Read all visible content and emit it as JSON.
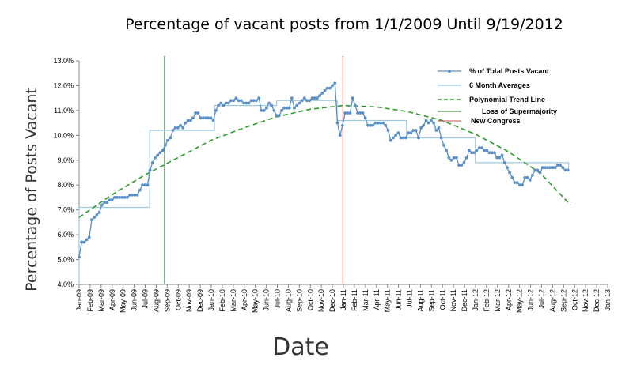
{
  "chart_data": {
    "type": "line",
    "title": "Percentage of vacant posts from 1/1/2009 Until 9/19/2012",
    "xlabel": "Date",
    "ylabel": "Percentage of Posts Vacant",
    "xlim": [
      "2009-01-01",
      "2013-01-01"
    ],
    "ylim": [
      4.0,
      13.0
    ],
    "y_ticks": [
      "4.0%",
      "5.0%",
      "6.0%",
      "7.0%",
      "8.0%",
      "9.0%",
      "10.0%",
      "11.0%",
      "12.0%",
      "13.0%"
    ],
    "x_ticks": [
      "Jan-09",
      "Feb-09",
      "Mar-09",
      "Apr-09",
      "May-09",
      "Jun-09",
      "Jul-09",
      "Aug-09",
      "Sep-09",
      "Oct-09",
      "Nov-09",
      "Dec-09",
      "Jan-10",
      "Feb-10",
      "Mar-10",
      "Apr-10",
      "May-10",
      "Jun-10",
      "Jul-10",
      "Aug-10",
      "Sep-10",
      "Oct-10",
      "Nov-10",
      "Dec-10",
      "Jan-11",
      "Feb-11",
      "Mar-11",
      "Apr-11",
      "May-11",
      "Jun-11",
      "Jul-11",
      "Aug-11",
      "Sep-11",
      "Oct-11",
      "Nov-11",
      "Dec-11",
      "Jan-12",
      "Feb-12",
      "Mar-12",
      "Apr-12",
      "May-12",
      "Jun-12",
      "Jul-12",
      "Aug-12",
      "Sep-12",
      "Oct-12",
      "Nov-12",
      "Dec-12",
      "Jan-13"
    ],
    "grid": false,
    "legend_position": "top-right",
    "series": [
      {
        "name": "% of Total Posts Vacant",
        "color": "#5b8fc7",
        "style": "line-markers",
        "points": [
          [
            "2009-01-01",
            5.1
          ],
          [
            "2009-01-08",
            5.7
          ],
          [
            "2009-01-15",
            5.7
          ],
          [
            "2009-01-22",
            5.8
          ],
          [
            "2009-01-29",
            5.9
          ],
          [
            "2009-02-05",
            6.6
          ],
          [
            "2009-02-12",
            6.7
          ],
          [
            "2009-02-19",
            6.8
          ],
          [
            "2009-02-26",
            6.9
          ],
          [
            "2009-03-05",
            7.2
          ],
          [
            "2009-03-12",
            7.3
          ],
          [
            "2009-03-19",
            7.3
          ],
          [
            "2009-03-26",
            7.4
          ],
          [
            "2009-04-02",
            7.4
          ],
          [
            "2009-04-09",
            7.5
          ],
          [
            "2009-04-16",
            7.5
          ],
          [
            "2009-04-23",
            7.5
          ],
          [
            "2009-04-30",
            7.5
          ],
          [
            "2009-05-07",
            7.5
          ],
          [
            "2009-05-14",
            7.5
          ],
          [
            "2009-05-21",
            7.6
          ],
          [
            "2009-05-28",
            7.6
          ],
          [
            "2009-06-04",
            7.6
          ],
          [
            "2009-06-11",
            7.6
          ],
          [
            "2009-06-18",
            7.8
          ],
          [
            "2009-06-25",
            8.0
          ],
          [
            "2009-07-02",
            8.0
          ],
          [
            "2009-07-09",
            8.0
          ],
          [
            "2009-07-16",
            8.6
          ],
          [
            "2009-07-23",
            8.9
          ],
          [
            "2009-07-30",
            9.1
          ],
          [
            "2009-08-06",
            9.2
          ],
          [
            "2009-08-13",
            9.3
          ],
          [
            "2009-08-20",
            9.4
          ],
          [
            "2009-08-27",
            9.6
          ],
          [
            "2009-09-03",
            9.8
          ],
          [
            "2009-09-10",
            9.9
          ],
          [
            "2009-09-17",
            10.2
          ],
          [
            "2009-09-24",
            10.3
          ],
          [
            "2009-10-01",
            10.3
          ],
          [
            "2009-10-08",
            10.4
          ],
          [
            "2009-10-15",
            10.3
          ],
          [
            "2009-10-22",
            10.5
          ],
          [
            "2009-10-29",
            10.6
          ],
          [
            "2009-11-05",
            10.6
          ],
          [
            "2009-11-12",
            10.7
          ],
          [
            "2009-11-19",
            10.9
          ],
          [
            "2009-11-26",
            10.9
          ],
          [
            "2009-12-03",
            10.7
          ],
          [
            "2009-12-10",
            10.7
          ],
          [
            "2009-12-17",
            10.7
          ],
          [
            "2009-12-24",
            10.7
          ],
          [
            "2009-12-31",
            10.7
          ],
          [
            "2010-01-07",
            10.6
          ],
          [
            "2010-01-14",
            11.0
          ],
          [
            "2010-01-21",
            11.2
          ],
          [
            "2010-01-28",
            11.3
          ],
          [
            "2010-02-04",
            11.2
          ],
          [
            "2010-02-11",
            11.3
          ],
          [
            "2010-02-18",
            11.3
          ],
          [
            "2010-02-25",
            11.4
          ],
          [
            "2010-03-04",
            11.4
          ],
          [
            "2010-03-11",
            11.5
          ],
          [
            "2010-03-18",
            11.4
          ],
          [
            "2010-03-25",
            11.4
          ],
          [
            "2010-04-01",
            11.3
          ],
          [
            "2010-04-08",
            11.3
          ],
          [
            "2010-04-15",
            11.3
          ],
          [
            "2010-04-22",
            11.4
          ],
          [
            "2010-04-29",
            11.4
          ],
          [
            "2010-05-06",
            11.4
          ],
          [
            "2010-05-13",
            11.5
          ],
          [
            "2010-05-20",
            11.0
          ],
          [
            "2010-05-27",
            11.0
          ],
          [
            "2010-06-03",
            11.1
          ],
          [
            "2010-06-10",
            11.3
          ],
          [
            "2010-06-17",
            11.2
          ],
          [
            "2010-06-24",
            11.0
          ],
          [
            "2010-07-01",
            10.8
          ],
          [
            "2010-07-08",
            10.8
          ],
          [
            "2010-07-15",
            11.0
          ],
          [
            "2010-07-22",
            11.1
          ],
          [
            "2010-07-29",
            11.1
          ],
          [
            "2010-08-05",
            11.1
          ],
          [
            "2010-08-12",
            11.5
          ],
          [
            "2010-08-19",
            11.1
          ],
          [
            "2010-08-26",
            11.2
          ],
          [
            "2010-09-02",
            11.3
          ],
          [
            "2010-09-09",
            11.4
          ],
          [
            "2010-09-16",
            11.5
          ],
          [
            "2010-09-23",
            11.4
          ],
          [
            "2010-09-30",
            11.4
          ],
          [
            "2010-10-07",
            11.5
          ],
          [
            "2010-10-14",
            11.5
          ],
          [
            "2010-10-21",
            11.5
          ],
          [
            "2010-10-28",
            11.6
          ],
          [
            "2010-11-04",
            11.7
          ],
          [
            "2010-11-11",
            11.8
          ],
          [
            "2010-11-18",
            11.9
          ],
          [
            "2010-11-25",
            11.9
          ],
          [
            "2010-12-02",
            12.0
          ],
          [
            "2010-12-09",
            12.1
          ],
          [
            "2010-12-16",
            10.5
          ],
          [
            "2010-12-23",
            10.0
          ],
          [
            "2010-12-30",
            10.4
          ],
          [
            "2011-01-06",
            10.9
          ],
          [
            "2011-01-13",
            10.9
          ],
          [
            "2011-01-20",
            10.9
          ],
          [
            "2011-01-27",
            11.5
          ],
          [
            "2011-02-03",
            11.2
          ],
          [
            "2011-02-10",
            10.9
          ],
          [
            "2011-02-17",
            10.9
          ],
          [
            "2011-02-24",
            10.9
          ],
          [
            "2011-03-03",
            10.7
          ],
          [
            "2011-03-10",
            10.4
          ],
          [
            "2011-03-17",
            10.4
          ],
          [
            "2011-03-24",
            10.4
          ],
          [
            "2011-03-31",
            10.5
          ],
          [
            "2011-04-07",
            10.5
          ],
          [
            "2011-04-14",
            10.5
          ],
          [
            "2011-04-21",
            10.5
          ],
          [
            "2011-04-28",
            10.4
          ],
          [
            "2011-05-05",
            10.2
          ],
          [
            "2011-05-12",
            9.8
          ],
          [
            "2011-05-19",
            9.9
          ],
          [
            "2011-05-26",
            10.0
          ],
          [
            "2011-06-02",
            10.1
          ],
          [
            "2011-06-09",
            9.9
          ],
          [
            "2011-06-16",
            9.9
          ],
          [
            "2011-06-23",
            9.9
          ],
          [
            "2011-06-30",
            10.1
          ],
          [
            "2011-07-07",
            10.1
          ],
          [
            "2011-07-14",
            10.2
          ],
          [
            "2011-07-21",
            10.2
          ],
          [
            "2011-07-28",
            9.9
          ],
          [
            "2011-08-04",
            10.3
          ],
          [
            "2011-08-11",
            10.4
          ],
          [
            "2011-08-18",
            10.6
          ],
          [
            "2011-08-25",
            10.5
          ],
          [
            "2011-09-01",
            10.6
          ],
          [
            "2011-09-08",
            10.5
          ],
          [
            "2011-09-15",
            10.2
          ],
          [
            "2011-09-22",
            10.3
          ],
          [
            "2011-09-29",
            9.9
          ],
          [
            "2011-10-06",
            9.6
          ],
          [
            "2011-10-13",
            9.4
          ],
          [
            "2011-10-20",
            9.1
          ],
          [
            "2011-10-27",
            9.0
          ],
          [
            "2011-11-03",
            9.1
          ],
          [
            "2011-11-10",
            9.1
          ],
          [
            "2011-11-17",
            8.8
          ],
          [
            "2011-11-24",
            8.8
          ],
          [
            "2011-12-01",
            8.9
          ],
          [
            "2011-12-08",
            9.1
          ],
          [
            "2011-12-15",
            9.4
          ],
          [
            "2011-12-22",
            9.3
          ],
          [
            "2011-12-29",
            9.3
          ],
          [
            "2012-01-05",
            9.4
          ],
          [
            "2012-01-12",
            9.5
          ],
          [
            "2012-01-19",
            9.5
          ],
          [
            "2012-01-26",
            9.4
          ],
          [
            "2012-02-02",
            9.4
          ],
          [
            "2012-02-09",
            9.3
          ],
          [
            "2012-02-16",
            9.3
          ],
          [
            "2012-02-23",
            9.3
          ],
          [
            "2012-03-01",
            9.1
          ],
          [
            "2012-03-08",
            9.1
          ],
          [
            "2012-03-15",
            9.2
          ],
          [
            "2012-03-22",
            8.9
          ],
          [
            "2012-03-29",
            8.7
          ],
          [
            "2012-04-05",
            8.5
          ],
          [
            "2012-04-12",
            8.3
          ],
          [
            "2012-04-19",
            8.1
          ],
          [
            "2012-04-26",
            8.1
          ],
          [
            "2012-05-03",
            8.0
          ],
          [
            "2012-05-10",
            8.0
          ],
          [
            "2012-05-17",
            8.3
          ],
          [
            "2012-05-24",
            8.3
          ],
          [
            "2012-05-31",
            8.2
          ],
          [
            "2012-06-07",
            8.4
          ],
          [
            "2012-06-14",
            8.6
          ],
          [
            "2012-06-21",
            8.6
          ],
          [
            "2012-06-28",
            8.5
          ],
          [
            "2012-07-05",
            8.7
          ],
          [
            "2012-07-12",
            8.7
          ],
          [
            "2012-07-19",
            8.7
          ],
          [
            "2012-07-26",
            8.7
          ],
          [
            "2012-08-02",
            8.7
          ],
          [
            "2012-08-09",
            8.7
          ],
          [
            "2012-08-16",
            8.8
          ],
          [
            "2012-08-23",
            8.8
          ],
          [
            "2012-08-30",
            8.7
          ],
          [
            "2012-09-06",
            8.6
          ],
          [
            "2012-09-13",
            8.6
          ]
        ]
      },
      {
        "name": "6 Month Averages",
        "color": "#9ec9e2",
        "style": "step",
        "points": [
          [
            "2009-01-01",
            4.0
          ],
          [
            "2009-01-01",
            7.1
          ],
          [
            "2009-07-15",
            7.1
          ],
          [
            "2009-07-15",
            10.2
          ],
          [
            "2010-01-10",
            10.2
          ],
          [
            "2010-01-10",
            11.2
          ],
          [
            "2010-07-01",
            11.2
          ],
          [
            "2010-07-01",
            11.4
          ],
          [
            "2010-12-15",
            11.4
          ],
          [
            "2010-12-15",
            10.6
          ],
          [
            "2011-06-25",
            10.6
          ],
          [
            "2011-06-25",
            9.9
          ],
          [
            "2012-01-01",
            9.9
          ],
          [
            "2012-01-01",
            8.9
          ],
          [
            "2012-09-15",
            8.9
          ],
          [
            "2012-09-15",
            8.6
          ]
        ]
      },
      {
        "name": "Polynomial Trend Line",
        "color": "#2a9a2a",
        "style": "dashed",
        "points": [
          [
            "2009-01-01",
            6.7
          ],
          [
            "2009-04-01",
            7.6
          ],
          [
            "2009-07-01",
            8.4
          ],
          [
            "2009-10-01",
            9.1
          ],
          [
            "2010-01-01",
            9.8
          ],
          [
            "2010-04-01",
            10.3
          ],
          [
            "2010-07-01",
            10.75
          ],
          [
            "2010-10-01",
            11.05
          ],
          [
            "2011-01-01",
            11.2
          ],
          [
            "2011-04-01",
            11.15
          ],
          [
            "2011-07-01",
            10.95
          ],
          [
            "2011-10-01",
            10.6
          ],
          [
            "2012-01-01",
            10.05
          ],
          [
            "2012-04-01",
            9.35
          ],
          [
            "2012-07-01",
            8.45
          ],
          [
            "2012-09-20",
            7.2
          ]
        ]
      }
    ],
    "vertical_markers": [
      {
        "name": "Loss of Supermajority",
        "date": "2009-08-25",
        "color": "#2e7d32"
      },
      {
        "name": "New Congress",
        "date": "2010-12-31",
        "color": "#c0504d"
      }
    ]
  }
}
